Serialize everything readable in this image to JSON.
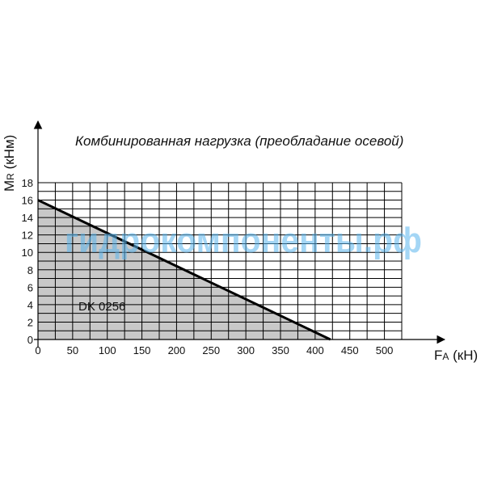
{
  "chart_data": {
    "type": "area",
    "title": "Комбинированная нагрузка (преобладание осевой)",
    "xlabel": {
      "main": "F",
      "sub": "A",
      "unit": " (кН)"
    },
    "ylabel": {
      "main": "M",
      "sub": "R",
      "unit": " (кНм)"
    },
    "x_ticks": [
      0,
      50,
      100,
      150,
      200,
      250,
      300,
      350,
      400,
      450,
      500
    ],
    "y_ticks": [
      0,
      2,
      4,
      6,
      8,
      10,
      12,
      14,
      16,
      18
    ],
    "xlim": [
      0,
      525
    ],
    "ylim": [
      0,
      18
    ],
    "grid": true,
    "series": [
      {
        "name": "DK 0256",
        "x": [
          0,
          422
        ],
        "y": [
          16,
          0
        ]
      }
    ],
    "watermark": "гидрокомпоненты.рф",
    "colors": {
      "fill": "#c8c8c8",
      "line": "#000000",
      "grid": "#000000",
      "watermark": "#5ab4ec"
    }
  }
}
